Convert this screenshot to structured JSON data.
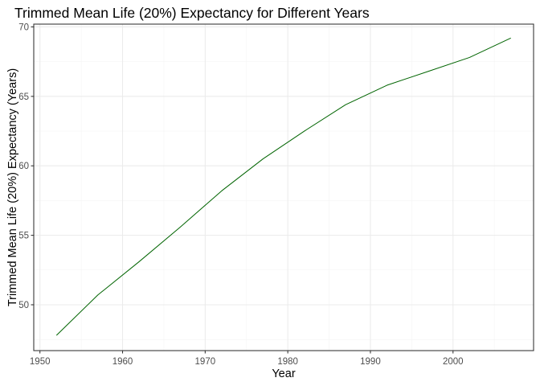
{
  "chart_data": {
    "type": "line",
    "title": "Trimmed Mean Life (20%) Expectancy for Different Years",
    "xlabel": "Year",
    "ylabel": "Trimmed Mean Life (20%) Expectancy (Years)",
    "xlim": [
      1949.25,
      2009.75
    ],
    "ylim": [
      46.7,
      70.2
    ],
    "x_ticks": [
      1950,
      1960,
      1970,
      1980,
      1990,
      2000
    ],
    "y_ticks": [
      50,
      55,
      60,
      65,
      70
    ],
    "grid": true,
    "legend": "none",
    "series": [
      {
        "color": "#006400",
        "x": [
          1952,
          1957,
          1962,
          1967,
          1972,
          1977,
          1982,
          1987,
          1992,
          1997,
          2002,
          2007
        ],
        "y": [
          47.8,
          50.7,
          53.1,
          55.6,
          58.2,
          60.5,
          62.5,
          64.4,
          65.8,
          66.8,
          67.8,
          69.2
        ]
      }
    ]
  }
}
